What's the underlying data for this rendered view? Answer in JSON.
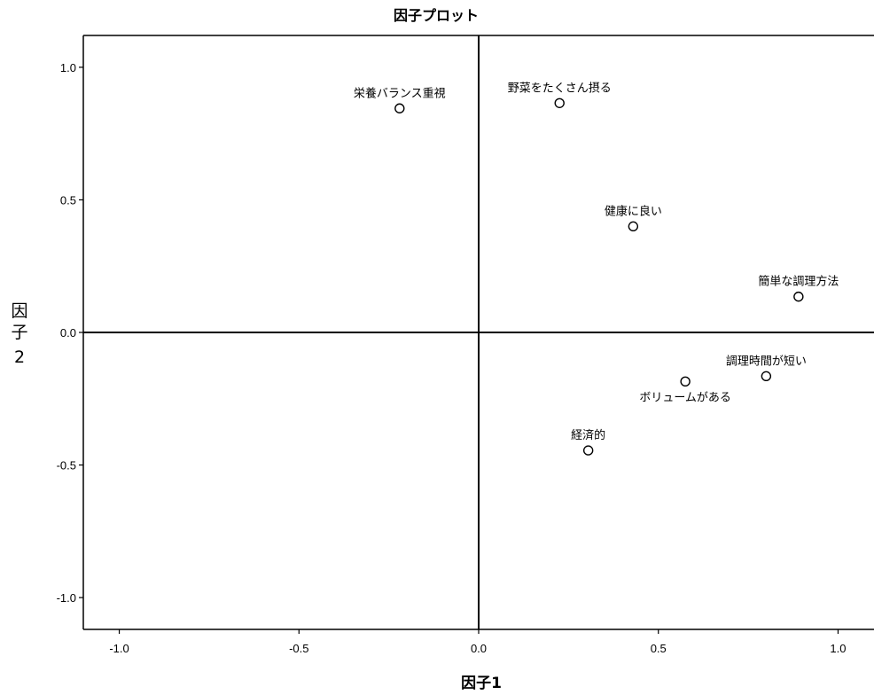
{
  "chart_data": {
    "type": "scatter",
    "title": "因子プロット",
    "xlabel": "因子1",
    "ylabel_lines": [
      "因",
      "子",
      "2"
    ],
    "xlim": [
      -1.1,
      1.1
    ],
    "ylim": [
      -1.12,
      1.12
    ],
    "x_ticks": [
      -1.0,
      -0.5,
      0.0,
      0.5,
      1.0
    ],
    "x_tick_labels": [
      "-1.0",
      "-0.5",
      "0.0",
      "0.5",
      "1.0"
    ],
    "y_ticks": [
      1.0,
      0.5,
      0.0,
      -0.5,
      -1.0
    ],
    "y_tick_labels": [
      "1.0",
      "0.5",
      "0.0",
      "-0.5",
      "-1.0"
    ],
    "reference_lines": {
      "x": 0,
      "y": 0
    },
    "grid": false,
    "points": [
      {
        "label": "栄養バランス重視",
        "x": -0.22,
        "y": 0.845,
        "label_pos": "above"
      },
      {
        "label": "野菜をたくさん摂る",
        "x": 0.225,
        "y": 0.865,
        "label_pos": "above"
      },
      {
        "label": "健康に良い",
        "x": 0.43,
        "y": 0.4,
        "label_pos": "above"
      },
      {
        "label": "簡単な調理方法",
        "x": 0.89,
        "y": 0.135,
        "label_pos": "above"
      },
      {
        "label": "調理時間が短い",
        "x": 0.8,
        "y": -0.165,
        "label_pos": "above"
      },
      {
        "label": "ボリュームがある",
        "x": 0.575,
        "y": -0.185,
        "label_pos": "below"
      },
      {
        "label": "経済的",
        "x": 0.305,
        "y": -0.445,
        "label_pos": "above"
      }
    ]
  }
}
